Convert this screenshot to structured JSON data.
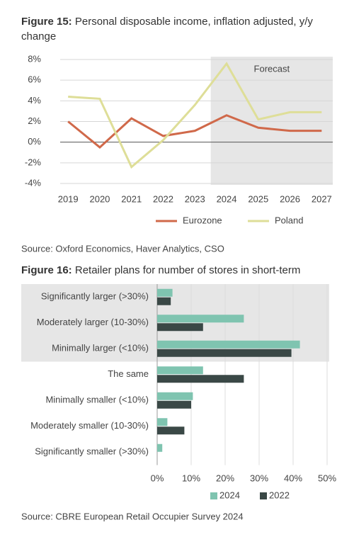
{
  "chart_data": [
    {
      "type": "line",
      "figure": "Figure 15:",
      "title": "Personal disposable income, inflation adjusted, y/y change",
      "x": [
        2019,
        2020,
        2021,
        2022,
        2023,
        2024,
        2025,
        2026,
        2027
      ],
      "xlim": [
        2018.75,
        2027.35
      ],
      "xticks": [
        2019,
        2020,
        2021,
        2022,
        2023,
        2024,
        2025,
        2026,
        2027
      ],
      "ylim": [
        -4,
        8
      ],
      "yticks": [
        {
          "value": -4,
          "label": "-4%"
        },
        {
          "value": -2,
          "label": "-2%"
        },
        {
          "value": 0,
          "label": "0%"
        },
        {
          "value": 2,
          "label": "2%"
        },
        {
          "value": 4,
          "label": "4%"
        },
        {
          "value": 6,
          "label": "6%"
        },
        {
          "value": 8,
          "label": "8%"
        }
      ],
      "grid": true,
      "shade": {
        "label": "Forecast",
        "from": 2023.5,
        "color": "#e6e6e6"
      },
      "series": [
        {
          "name": "Eurozone",
          "color": "#d0694a",
          "values": [
            2.0,
            -0.5,
            2.3,
            0.6,
            1.1,
            2.6,
            1.4,
            1.1,
            1.1
          ]
        },
        {
          "name": "Poland",
          "color": "#dede98",
          "values": [
            4.4,
            4.2,
            -2.4,
            0.2,
            3.6,
            7.6,
            2.2,
            2.9,
            2.9
          ]
        }
      ],
      "legend": "bottom",
      "source": "Source: Oxford Economics, Haver Analytics, CSO"
    },
    {
      "type": "hbar",
      "figure": "Figure 16:",
      "title": "Retailer plans for number of stores in short-term",
      "categories": [
        "Significantly larger (>30%)",
        "Moderately larger (10-30%)",
        "Minimally larger (<10%)",
        "The same",
        "Minimally smaller (<10%)",
        "Moderately smaller (10-30%)",
        "Significantly smaller (>30%)"
      ],
      "xlim": [
        0,
        50
      ],
      "xticks": [
        {
          "value": 0,
          "label": "0%"
        },
        {
          "value": 10,
          "label": "10%"
        },
        {
          "value": 20,
          "label": "20%"
        },
        {
          "value": 30,
          "label": "30%"
        },
        {
          "value": 40,
          "label": "40%"
        },
        {
          "value": 50,
          "label": "50%"
        }
      ],
      "grid": true,
      "highlight": {
        "from": 0,
        "to": 2,
        "color": "#e6e6e6"
      },
      "series": [
        {
          "name": "2024",
          "color": "#7fc4b0",
          "values": [
            4.5,
            25.5,
            42,
            13.5,
            10.5,
            3,
            1.5
          ]
        },
        {
          "name": "2022",
          "color": "#3a4846",
          "values": [
            4,
            13.5,
            39.5,
            25.5,
            10,
            8,
            0
          ]
        }
      ],
      "legend": "bottom",
      "source": "Source: CBRE European Retail Occupier Survey 2024"
    }
  ]
}
